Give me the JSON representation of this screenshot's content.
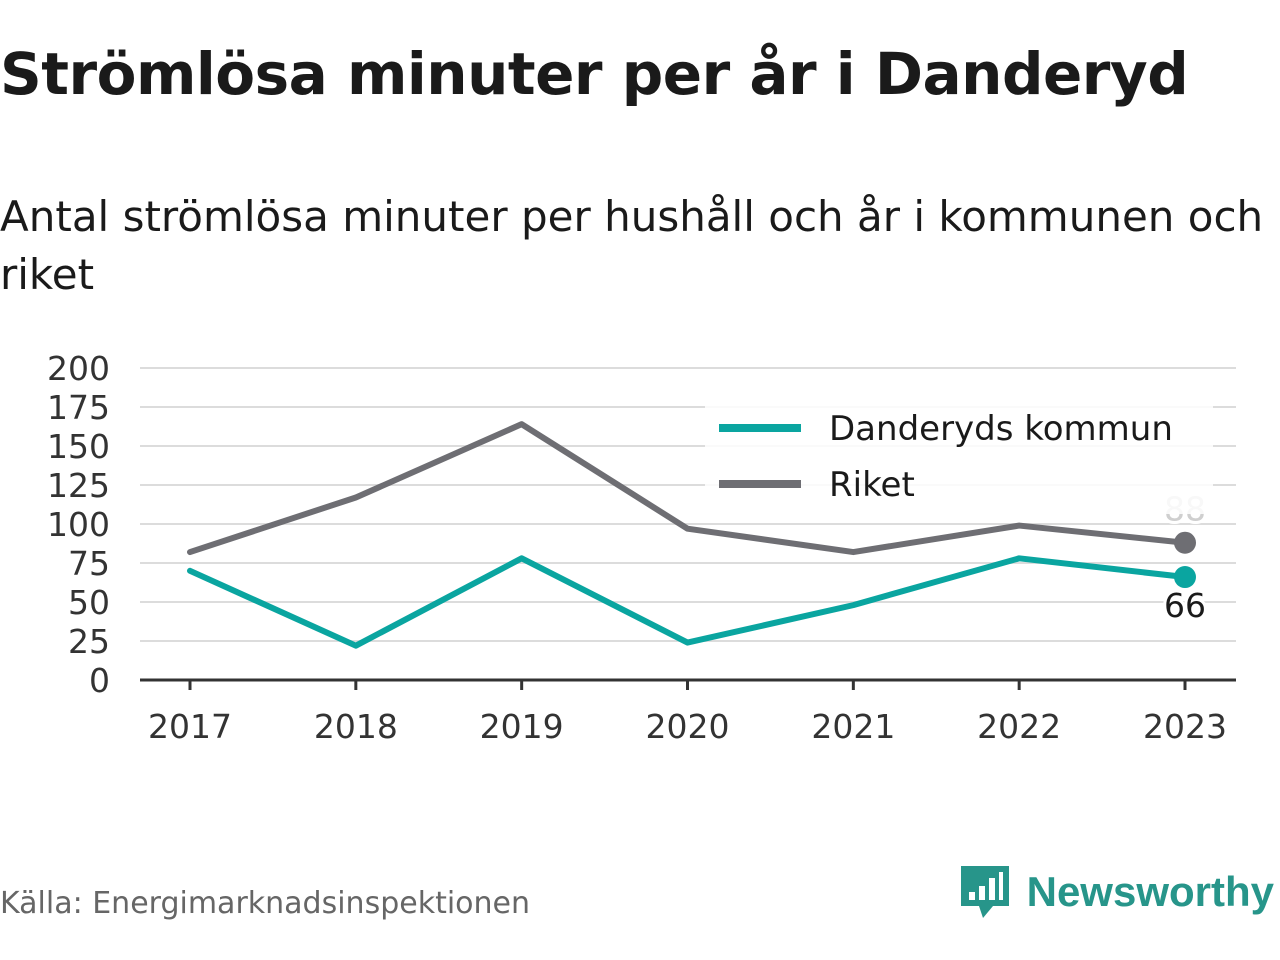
{
  "title": "Strömlösa minuter per år i Danderyd",
  "subtitle": "Antal strömlösa minuter per hushåll och år i kommunen och riket",
  "source": "Källa: Energimarknadsinspektionen",
  "brand": {
    "name": "Newsworthy",
    "icon": "newsworthy-logo-icon",
    "color": "#27958a"
  },
  "chart_data": {
    "type": "line",
    "title": "Strömlösa minuter per år i Danderyd",
    "subtitle": "Antal strömlösa minuter per hushåll och år i kommunen och riket",
    "x": [
      "2017",
      "2018",
      "2019",
      "2020",
      "2021",
      "2022",
      "2023"
    ],
    "series": [
      {
        "name": "Riket",
        "color": "#6e6e73",
        "values": [
          82,
          117,
          164,
          97,
          82,
          99,
          88
        ],
        "end_label": "88"
      },
      {
        "name": "Danderyds kommun",
        "color": "#0aa5a0",
        "values": [
          70,
          22,
          78,
          24,
          48,
          78,
          66
        ],
        "end_label": "66"
      }
    ],
    "legend_order": [
      "Danderyds kommun",
      "Riket"
    ],
    "legend_position": "top-right",
    "ylim": [
      0,
      200
    ],
    "yticks": [
      0,
      25,
      50,
      75,
      100,
      125,
      150,
      175,
      200
    ],
    "grid": true,
    "xlabel": "",
    "ylabel": ""
  }
}
